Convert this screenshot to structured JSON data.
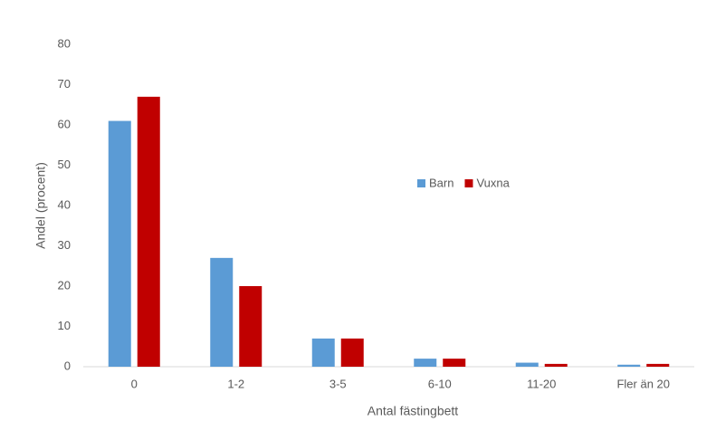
{
  "chart_data": {
    "type": "bar",
    "x_label": "Antal fästingbett",
    "y_label": "Andel (procent)",
    "categories": [
      "0",
      "1-2",
      "3-5",
      "6-10",
      "11-20",
      "Fler än 20"
    ],
    "series": [
      {
        "name": "Barn",
        "color": "#5b9bd5",
        "values": [
          61,
          27,
          7,
          2,
          1,
          0.5
        ]
      },
      {
        "name": "Vuxna",
        "color": "#c00000",
        "values": [
          67,
          20,
          7,
          2,
          0.7,
          0.7
        ]
      }
    ],
    "ylim": [
      0,
      80
    ],
    "yticks": [
      0,
      10,
      20,
      30,
      40,
      50,
      60,
      70,
      80
    ],
    "grid": false,
    "legend": "center"
  }
}
